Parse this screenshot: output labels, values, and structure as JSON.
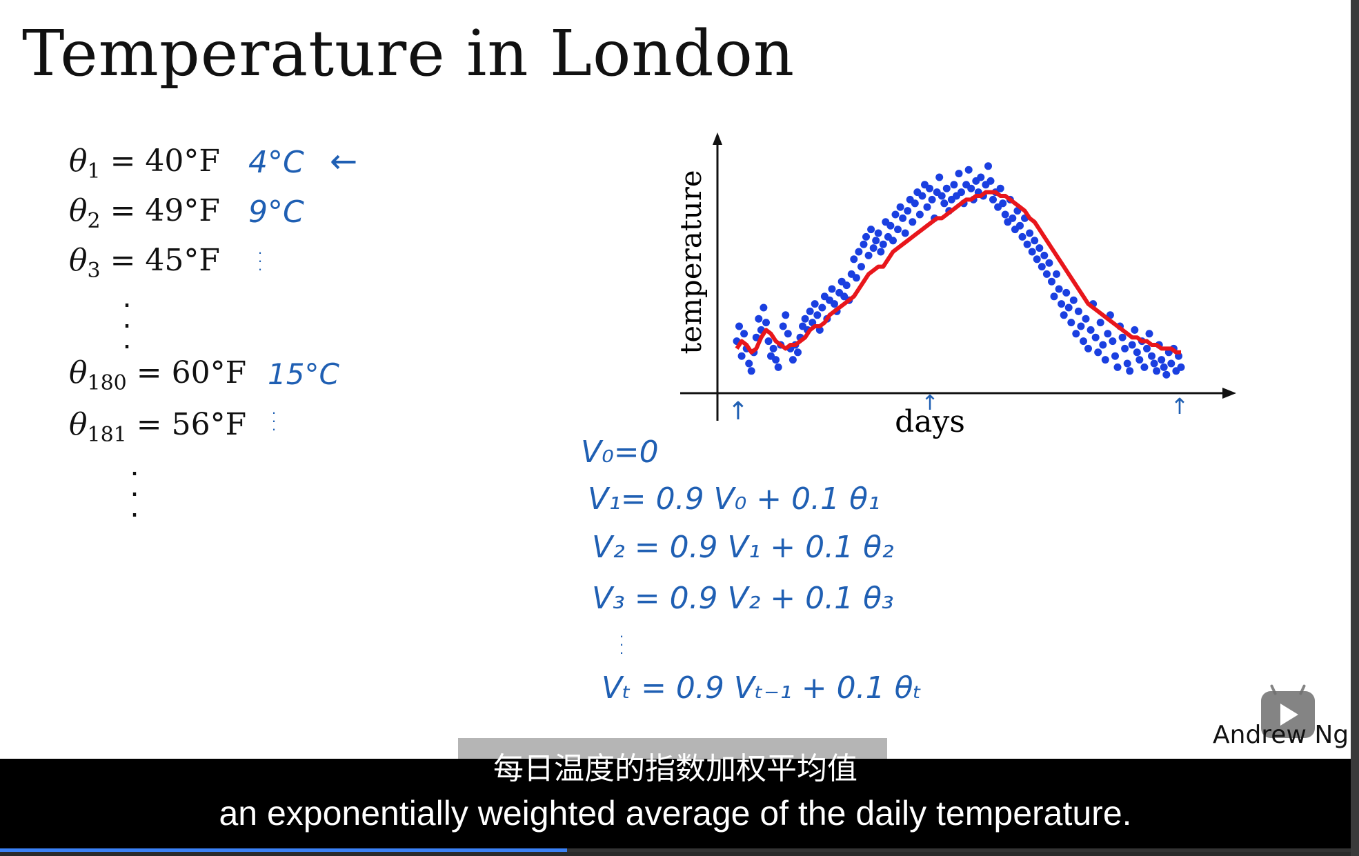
{
  "slide": {
    "title": "Temperature in London",
    "equations": [
      {
        "theta": "θ",
        "sub": "1",
        "rhs": " = 40°F"
      },
      {
        "theta": "θ",
        "sub": "2",
        "rhs": " = 49°F"
      },
      {
        "theta": "θ",
        "sub": "3",
        "rhs": " = 45°F"
      },
      {
        "theta": "θ",
        "sub": "180",
        "rhs": " = 60°F"
      },
      {
        "theta": "θ",
        "sub": "181",
        "rhs": " = 56°F"
      }
    ],
    "annotations": {
      "c1": "4°C",
      "c1_arrow": "←",
      "c2": "9°C",
      "c180": "15°C",
      "formulas": [
        "V₀=0",
        "V₁= 0.9 V₀     + 0.1  θ₁",
        "V₂ = 0.9 V₁     + 0.1 θ₂",
        "V₃ = 0.9 V₂     + 0.1  θ₃",
        "Vₜ = 0.9 Vₜ₋₁    + 0.1 θₜ"
      ]
    },
    "author": "Andrew Ng"
  },
  "chart_data": {
    "type": "scatter",
    "xlabel": "days",
    "ylabel": "temperature",
    "grid": false,
    "series": [
      {
        "kind": "scatter",
        "color": "#1a3fe0",
        "x": [
          1,
          3,
          5,
          7,
          9,
          11,
          13,
          15,
          17,
          19,
          21,
          23,
          25,
          27,
          29,
          31,
          33,
          35,
          37,
          39,
          41,
          43,
          45,
          47,
          49,
          51,
          53,
          55,
          57,
          59,
          61,
          63,
          65,
          67,
          69,
          71,
          73,
          75,
          77,
          79,
          81,
          83,
          85,
          87,
          89,
          91,
          93,
          95,
          97,
          99,
          101,
          103,
          105,
          107,
          109,
          111,
          113,
          115,
          117,
          119,
          121,
          123,
          125,
          127,
          129,
          131,
          133,
          135,
          137,
          139,
          141,
          143,
          145,
          147,
          149,
          151,
          153,
          155,
          157,
          159,
          161,
          163,
          165,
          167,
          169,
          171,
          173,
          175,
          177,
          179,
          181,
          183,
          185,
          187,
          189,
          191,
          193,
          195,
          197,
          199,
          201,
          203,
          205,
          207,
          209,
          211,
          213,
          215,
          217,
          219,
          221,
          223,
          225,
          227,
          229,
          231,
          233,
          235,
          237,
          239,
          241,
          243,
          245,
          247,
          249,
          251,
          253,
          255,
          257,
          259,
          261,
          263,
          265,
          267,
          269,
          271,
          273,
          275,
          277,
          279,
          281,
          283,
          285,
          287,
          289,
          291,
          293,
          295,
          297,
          299,
          301,
          303,
          305,
          307,
          309,
          311,
          313,
          315,
          317,
          319,
          321,
          323,
          325,
          327,
          329,
          331,
          333,
          335,
          337,
          339,
          341,
          343,
          345,
          347,
          349,
          351,
          353,
          355,
          357,
          359,
          361,
          363,
          365
        ],
        "y": [
          46,
          50,
          42,
          48,
          44,
          40,
          38,
          43,
          47,
          52,
          49,
          55,
          51,
          46,
          42,
          44,
          41,
          39,
          45,
          50,
          53,
          48,
          44,
          41,
          45,
          43,
          47,
          50,
          52,
          49,
          54,
          51,
          56,
          53,
          49,
          55,
          58,
          52,
          57,
          60,
          56,
          54,
          59,
          62,
          58,
          61,
          57,
          64,
          68,
          63,
          70,
          66,
          72,
          74,
          69,
          76,
          71,
          73,
          75,
          70,
          72,
          78,
          74,
          77,
          73,
          80,
          76,
          82,
          79,
          75,
          81,
          84,
          78,
          83,
          86,
          80,
          85,
          88,
          82,
          87,
          84,
          79,
          86,
          90,
          85,
          83,
          87,
          81,
          84,
          88,
          85,
          91,
          86,
          83,
          88,
          92,
          87,
          84,
          89,
          86,
          90,
          85,
          88,
          93,
          89,
          84,
          86,
          82,
          87,
          83,
          80,
          78,
          84,
          79,
          76,
          81,
          77,
          74,
          79,
          72,
          75,
          70,
          73,
          68,
          71,
          66,
          69,
          64,
          67,
          62,
          58,
          64,
          60,
          56,
          53,
          59,
          55,
          51,
          57,
          48,
          54,
          50,
          46,
          52,
          44,
          49,
          56,
          47,
          43,
          51,
          45,
          41,
          48,
          53,
          46,
          42,
          39,
          50,
          47,
          44,
          40,
          38,
          45,
          49,
          43,
          41,
          46,
          39,
          44,
          48,
          42,
          40,
          38,
          45,
          41,
          39,
          37,
          43,
          40,
          44,
          38,
          42,
          39
        ],
        "marker": "dot"
      },
      {
        "kind": "line",
        "color": "#e8161b",
        "x": [
          1,
          5,
          9,
          13,
          17,
          21,
          25,
          29,
          33,
          37,
          41,
          45,
          49,
          53,
          57,
          61,
          65,
          69,
          73,
          77,
          81,
          85,
          89,
          93,
          97,
          101,
          105,
          109,
          113,
          117,
          121,
          125,
          129,
          133,
          137,
          141,
          145,
          149,
          153,
          157,
          161,
          165,
          169,
          173,
          177,
          181,
          185,
          189,
          193,
          197,
          201,
          205,
          209,
          213,
          217,
          221,
          225,
          229,
          233,
          237,
          241,
          245,
          249,
          253,
          257,
          261,
          265,
          269,
          273,
          277,
          281,
          285,
          289,
          293,
          297,
          301,
          305,
          309,
          313,
          317,
          321,
          325,
          329,
          333,
          337,
          341,
          345,
          349,
          353,
          357,
          361,
          365
        ],
        "y": [
          44,
          46,
          45,
          43,
          44,
          47,
          49,
          48,
          46,
          45,
          44,
          45,
          45,
          46,
          47,
          49,
          50,
          50,
          51,
          53,
          54,
          55,
          56,
          57,
          58,
          60,
          62,
          64,
          65,
          66,
          66,
          68,
          70,
          71,
          72,
          73,
          74,
          75,
          76,
          77,
          78,
          79,
          79,
          80,
          81,
          82,
          83,
          84,
          84,
          85,
          85,
          86,
          86,
          86,
          85,
          85,
          84,
          83,
          82,
          81,
          79,
          78,
          76,
          74,
          72,
          70,
          68,
          66,
          64,
          62,
          60,
          58,
          56,
          55,
          54,
          53,
          52,
          51,
          50,
          49,
          48,
          47,
          47,
          46,
          46,
          45,
          45,
          44,
          44,
          44,
          43,
          43
        ]
      }
    ],
    "markers": [
      "↑",
      "↑",
      "↑"
    ]
  },
  "player": {
    "subtitle_cn": "每日温度的指数加权平均值",
    "subtitle_en": "an exponentially weighted average of the daily temperature.",
    "progress": 0.42
  }
}
